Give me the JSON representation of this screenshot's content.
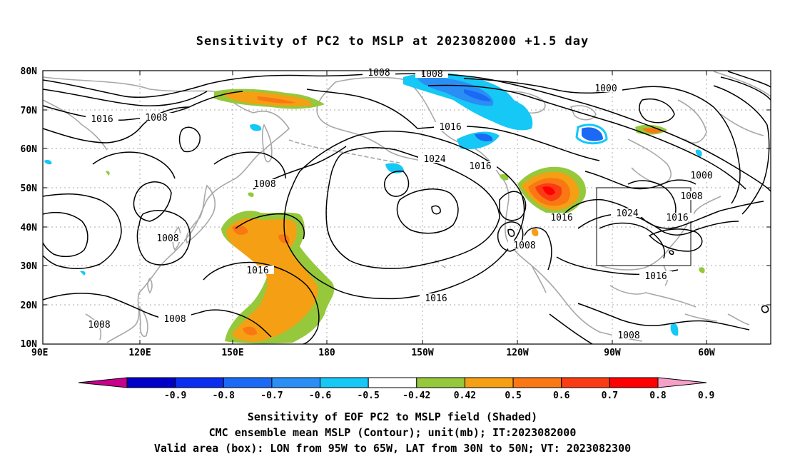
{
  "title": "Sensitivity of PC2 to MSLP at 2023082000 +1.5 day",
  "lat_labels": [
    "80N",
    "70N",
    "60N",
    "50N",
    "40N",
    "30N",
    "20N",
    "10N"
  ],
  "lon_labels": [
    "90E",
    "120E",
    "150E",
    "180",
    "150W",
    "120W",
    "90W",
    "60W"
  ],
  "contour_labels": [
    "1008",
    "1008",
    "1000",
    "1016",
    "1008",
    "1016",
    "1024",
    "1016",
    "1008",
    "1000",
    "1008",
    "1024",
    "1016",
    "1016",
    "1008",
    "1016",
    "1008",
    "1016",
    "1008",
    "1008",
    "1016",
    "1008"
  ],
  "colorbar": {
    "labels": [
      "-0.9",
      "-0.8",
      "-0.7",
      "-0.6",
      "-0.5",
      "-0.42",
      "0.42",
      "0.5",
      "0.6",
      "0.7",
      "0.8",
      "0.9"
    ],
    "colors": [
      "#c8008c",
      "#0000c8",
      "#0a2ef0",
      "#1a6af5",
      "#2a8ef5",
      "#16c8f5",
      "#ffffff",
      "#96c83c",
      "#f5a014",
      "#fa7814",
      "#fa3c14",
      "#ff0000",
      "#f5a0c8"
    ]
  },
  "valid_box": {
    "lon": [
      "95W",
      "65W"
    ],
    "lat": [
      "30N",
      "50N"
    ]
  },
  "captions": [
    "Sensitivity of EOF PC2 to MSLP field (Shaded)",
    "CMC ensemble mean MSLP (Contour); unit(mb); IT:2023082000",
    "Valid area (box): LON from 95W to 65W, LAT from 30N to 50N; VT: 2023082300"
  ]
}
